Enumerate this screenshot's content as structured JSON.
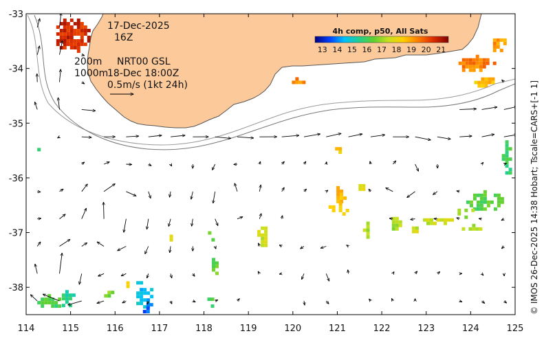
{
  "map": {
    "lon_range": [
      114,
      125
    ],
    "lat_range": [
      -38.5,
      -33
    ],
    "x_ticks": [
      "114",
      "115",
      "116",
      "117",
      "118",
      "119",
      "120",
      "121",
      "122",
      "123",
      "124",
      "125"
    ],
    "y_ticks": [
      "-33",
      "-34",
      "-35",
      "-36",
      "-37",
      "-38"
    ],
    "colors": {
      "land": "#fcc99b",
      "coast": "#555555",
      "contour": "#999999",
      "arrow": "#000000"
    }
  },
  "annotations": {
    "date": "17-Dec-2025",
    "hour": "16Z",
    "contour_200": "200m",
    "contour_1000": "1000m",
    "product": "NRT00 GSL",
    "valid_time": "18-Dec 18:00Z",
    "scale_label": "0.5m/s (1kt 24h)"
  },
  "colorbar": {
    "title": "4h comp, p50, All Sats",
    "labels": [
      "13",
      "14",
      "15",
      "16",
      "17",
      "18",
      "19",
      "20",
      "21"
    ],
    "range": [
      13,
      21.5
    ],
    "stops": [
      "#000080",
      "#0040ff",
      "#00c0ff",
      "#20d090",
      "#60d030",
      "#c8e020",
      "#ffd000",
      "#ff8000",
      "#e03000",
      "#800000"
    ]
  },
  "credit": "© IMOS 26-Dec-2025 14:38 Hobart; Tscale=CARS+[-1 1]",
  "sst_patches": [
    {
      "lon": 115.0,
      "lat": -33.35,
      "w": 0.8,
      "h": 0.65,
      "t": 20.7
    },
    {
      "lon": 124.1,
      "lat": -33.9,
      "w": 0.9,
      "h": 0.3,
      "t": 19.6
    },
    {
      "lon": 124.6,
      "lat": -33.5,
      "w": 0.35,
      "h": 0.35,
      "t": 19.3
    },
    {
      "lon": 124.3,
      "lat": -34.2,
      "w": 0.6,
      "h": 0.2,
      "t": 18.8
    },
    {
      "lon": 120.1,
      "lat": -34.2,
      "w": 0.4,
      "h": 0.08,
      "t": 19.5
    },
    {
      "lon": 124.8,
      "lat": -35.6,
      "w": 0.2,
      "h": 0.7,
      "t": 16.3
    },
    {
      "lon": 124.3,
      "lat": -36.4,
      "w": 0.8,
      "h": 0.35,
      "t": 16.6
    },
    {
      "lon": 123.8,
      "lat": -36.6,
      "w": 0.5,
      "h": 0.2,
      "t": 17.3
    },
    {
      "lon": 123.2,
      "lat": -36.75,
      "w": 0.7,
      "h": 0.15,
      "t": 17.8
    },
    {
      "lon": 124.0,
      "lat": -36.9,
      "w": 0.4,
      "h": 0.12,
      "t": 17.5
    },
    {
      "lon": 121.0,
      "lat": -36.3,
      "w": 0.35,
      "h": 0.3,
      "t": 18.9
    },
    {
      "lon": 121.0,
      "lat": -36.55,
      "w": 0.55,
      "h": 0.22,
      "t": 18.6
    },
    {
      "lon": 121.5,
      "lat": -36.15,
      "w": 0.2,
      "h": 0.2,
      "t": 18.3
    },
    {
      "lon": 121.0,
      "lat": -35.45,
      "w": 0.1,
      "h": 0.15,
      "t": 18.7
    },
    {
      "lon": 122.3,
      "lat": -36.8,
      "w": 0.3,
      "h": 0.3,
      "t": 17.4
    },
    {
      "lon": 122.7,
      "lat": -36.9,
      "w": 0.2,
      "h": 0.15,
      "t": 17.8
    },
    {
      "lon": 121.65,
      "lat": -36.95,
      "w": 0.15,
      "h": 0.3,
      "t": 17.6
    },
    {
      "lon": 119.3,
      "lat": -37.0,
      "w": 0.2,
      "h": 0.6,
      "t": 17.8
    },
    {
      "lon": 118.2,
      "lat": -37.6,
      "w": 0.2,
      "h": 0.4,
      "t": 16.8
    },
    {
      "lon": 118.15,
      "lat": -37.0,
      "w": 0.12,
      "h": 0.3,
      "t": 16.6
    },
    {
      "lon": 117.2,
      "lat": -37.1,
      "w": 0.1,
      "h": 0.25,
      "t": 17.9
    },
    {
      "lon": 116.6,
      "lat": -38.1,
      "w": 0.4,
      "h": 0.55,
      "t": 15.0
    },
    {
      "lon": 116.7,
      "lat": -38.35,
      "w": 0.3,
      "h": 0.25,
      "t": 14.2
    },
    {
      "lon": 114.5,
      "lat": -38.25,
      "w": 0.5,
      "h": 0.25,
      "t": 16.4
    },
    {
      "lon": 114.9,
      "lat": -38.2,
      "w": 0.35,
      "h": 0.3,
      "t": 15.9
    },
    {
      "lon": 115.8,
      "lat": -38.1,
      "w": 0.25,
      "h": 0.2,
      "t": 17.0
    },
    {
      "lon": 118.1,
      "lat": -38.25,
      "w": 0.2,
      "h": 0.25,
      "t": 16.5
    },
    {
      "lon": 116.25,
      "lat": -37.95,
      "w": 0.15,
      "h": 0.12,
      "t": 18.4
    },
    {
      "lon": 114.3,
      "lat": -35.45,
      "w": 0.1,
      "h": 0.12,
      "t": 16.5
    }
  ],
  "current_field": {
    "scale_mps": 0.5,
    "eddies": [
      {
        "lon": 116.0,
        "lat": -36.7,
        "r": 1.2,
        "s": 0.22,
        "rot": -1
      },
      {
        "lon": 114.9,
        "lat": -37.8,
        "r": 0.8,
        "s": 0.26,
        "rot": -1
      },
      {
        "lon": 118.6,
        "lat": -36.3,
        "r": 0.9,
        "s": 0.14,
        "rot": 1
      },
      {
        "lon": 122.5,
        "lat": -36.0,
        "r": 1.0,
        "s": 0.12,
        "rot": -1
      },
      {
        "lon": 120.8,
        "lat": -37.7,
        "r": 0.9,
        "s": 0.1,
        "rot": 1
      }
    ],
    "jet": {
      "s": 0.35
    }
  }
}
